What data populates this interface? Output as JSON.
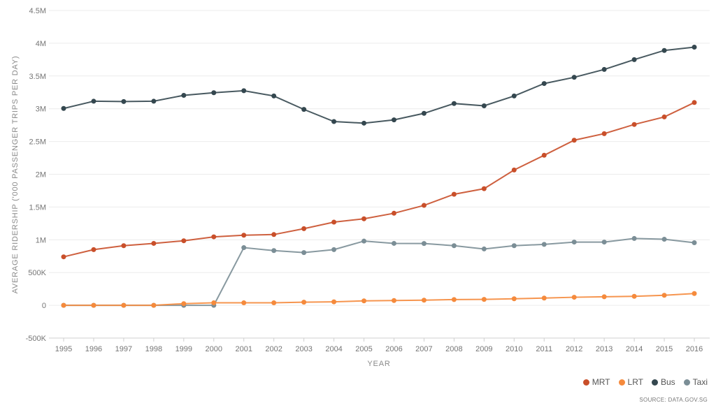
{
  "chart_data": {
    "type": "line",
    "xlabel": "YEAR",
    "ylabel": "AVERAGE RIDERSHIP ('000 PASSENGER TRIPS PER DAY)",
    "ylim": [
      -500000,
      4500000
    ],
    "y_ticks": [
      {
        "value": 4500000,
        "label": "4.5M"
      },
      {
        "value": 4000000,
        "label": "4M"
      },
      {
        "value": 3500000,
        "label": "3.5M"
      },
      {
        "value": 3000000,
        "label": "3M"
      },
      {
        "value": 2500000,
        "label": "2.5M"
      },
      {
        "value": 2000000,
        "label": "2M"
      },
      {
        "value": 1500000,
        "label": "1.5M"
      },
      {
        "value": 1000000,
        "label": "1M"
      },
      {
        "value": 500000,
        "label": "500K"
      },
      {
        "value": 0,
        "label": "0"
      },
      {
        "value": -500000,
        "label": "-500K"
      }
    ],
    "x": [
      "1995",
      "1996",
      "1997",
      "1998",
      "1999",
      "2000",
      "2001",
      "2002",
      "2003",
      "2004",
      "2005",
      "2006",
      "2007",
      "2008",
      "2009",
      "2010",
      "2011",
      "2012",
      "2013",
      "2014",
      "2015",
      "2016"
    ],
    "grid": true,
    "legend_position": "bottom-right",
    "series": [
      {
        "name": "MRT",
        "color": "#c94f2a",
        "values": [
          740000,
          850000,
          910000,
          945000,
          985000,
          1045000,
          1070000,
          1080000,
          1170000,
          1270000,
          1320000,
          1405000,
          1525000,
          1695000,
          1780000,
          2065000,
          2290000,
          2520000,
          2620000,
          2760000,
          2875000,
          3095000
        ]
      },
      {
        "name": "LRT",
        "color": "#f58a3c",
        "values": [
          0,
          0,
          0,
          0,
          25000,
          38000,
          38000,
          38000,
          48000,
          53000,
          68000,
          73000,
          78000,
          88000,
          90000,
          100000,
          110000,
          123000,
          130000,
          137000,
          153000,
          180000
        ]
      },
      {
        "name": "Bus",
        "color": "#34474f",
        "values": [
          3005000,
          3115000,
          3110000,
          3115000,
          3205000,
          3245000,
          3275000,
          3195000,
          2990000,
          2805000,
          2780000,
          2830000,
          2930000,
          3080000,
          3045000,
          3195000,
          3385000,
          3480000,
          3600000,
          3750000,
          3890000,
          3940000
        ]
      },
      {
        "name": "Taxi",
        "color": "#7b8e96",
        "values": [
          0,
          0,
          0,
          0,
          0,
          0,
          880000,
          835000,
          805000,
          850000,
          980000,
          945000,
          943000,
          910000,
          860000,
          910000,
          930000,
          965000,
          965000,
          1020000,
          1008000,
          955000
        ]
      }
    ],
    "source": "SOURCE: DATA.GOV.SG"
  }
}
